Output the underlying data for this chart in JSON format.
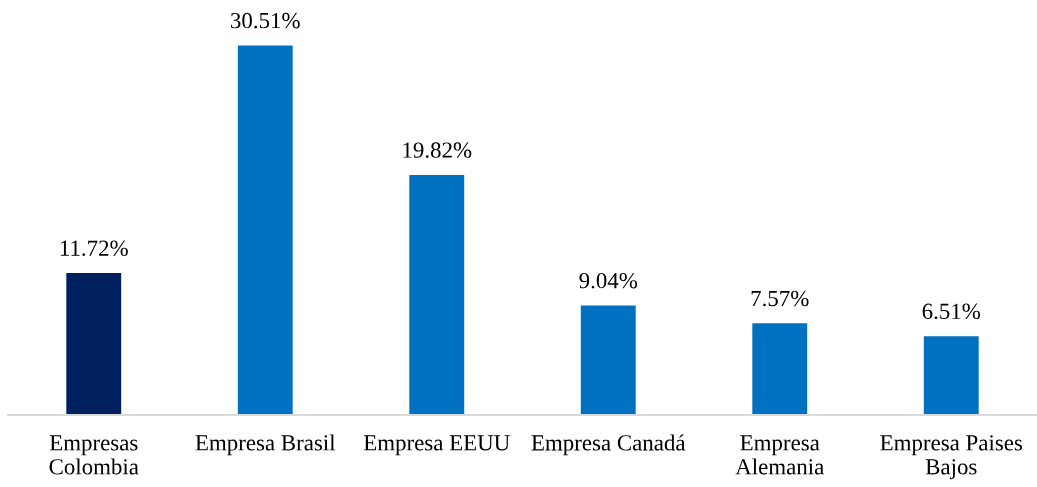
{
  "chart_data": {
    "type": "bar",
    "categories": [
      "Empresas\nColombia",
      "Empresa Brasil",
      "Empresa EEUU",
      "Empresa Canadá",
      "Empresa\nAlemania",
      "Empresa Paises\nBajos"
    ],
    "values": [
      11.72,
      30.51,
      19.82,
      9.04,
      7.57,
      6.51
    ],
    "colors": [
      "#002060",
      "#0070c0",
      "#0070c0",
      "#0070c0",
      "#0070c0",
      "#0070c0"
    ],
    "value_labels": [
      "11.72%",
      "30.51%",
      "19.82%",
      "9.04%",
      "7.57%",
      "6.51%"
    ],
    "tick_labels": "x",
    "grid": false,
    "legend": false
  }
}
